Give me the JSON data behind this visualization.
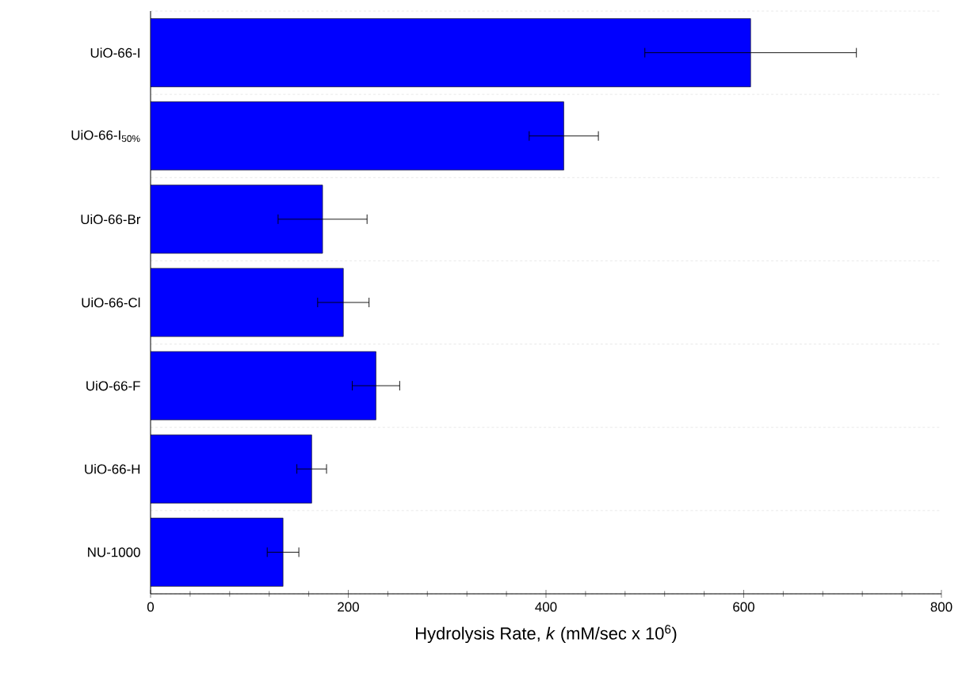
{
  "chart_data": {
    "type": "bar",
    "orientation": "horizontal",
    "categories": [
      "UiO-66-I",
      "UiO-66-I$_{50%}$",
      "UiO-66-Br",
      "UiO-66-Cl",
      "UiO-66-F",
      "UiO-66-H",
      "NU-1000"
    ],
    "values": [
      607,
      418,
      174,
      195,
      228,
      163,
      134
    ],
    "errors": [
      107,
      35,
      45,
      26,
      24,
      15,
      16
    ],
    "color": "#0000ff",
    "xlabel": "Hydrolysis Rate, *k* (mM/sec x 10$^{6}$)",
    "xlim": [
      0,
      800
    ],
    "xticks": [
      0,
      200,
      400,
      600,
      800
    ],
    "grid": "y"
  }
}
